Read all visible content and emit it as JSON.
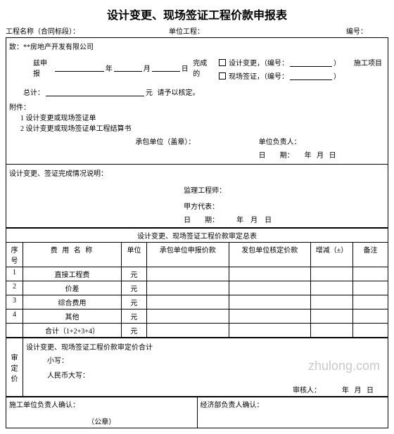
{
  "title": "设计变更、现场签证工程价款申报表",
  "header": {
    "project_name_label": "工程名称（合同标段）：",
    "unit_project_label": "单位工程：",
    "serial_label": "编号："
  },
  "addressee": "致：**房地产开发有限公司",
  "apply": {
    "prefix": "兹申报",
    "year": "年",
    "month": "月",
    "day": "日",
    "done": "完成的",
    "cb_design": "设计变更，（编号：",
    "cb_site": "现场签证，（编号：",
    "cb_close": "）",
    "proj_item": "施工项目"
  },
  "total": {
    "label": "总计：",
    "unit": "元",
    "suffix": "请予以核定。"
  },
  "attach": {
    "label": "附件：",
    "item1": "1 设计变更或现场签证单",
    "item2": "2 设计变更或现场签证单工程结算书"
  },
  "sign1": {
    "contractor": "承包单位（盖章）：",
    "leader": "单位负责人：",
    "date_label": "日　　期：",
    "y": "年",
    "m": "月",
    "d": "日"
  },
  "status_label": "设计变更、签证完成情况说明：",
  "sign2": {
    "engineer": "监理工程师：",
    "owner": "甲方代表：",
    "date_label": "日　　期：",
    "y": "年",
    "m": "月",
    "d": "日"
  },
  "subtable_title": "设计变更、现场签证工程价款审定总表",
  "columns": {
    "seq": "序号",
    "name": "费 用 名 称",
    "unit": "单位",
    "apply_price": "承包单位申报价款",
    "approve_price": "发包单位核定价款",
    "diff": "增减（±）",
    "remark": "备注"
  },
  "rows": [
    {
      "seq": "1",
      "name": "直接工程费",
      "unit": "元"
    },
    {
      "seq": "2",
      "name": "价差",
      "unit": "元"
    },
    {
      "seq": "3",
      "name": "综合费用",
      "unit": "元"
    },
    {
      "seq": "4",
      "name": "其他",
      "unit": "元"
    },
    {
      "seq": "",
      "name": "合计（1+2+3+4）",
      "unit": "元"
    }
  ],
  "审定价": {
    "side": "审定价",
    "line1": "设计变更、现场签证工程价款审定价合计",
    "lower": "小写：",
    "upper": "人民币大写：",
    "reviewer": "审核人：",
    "y": "年",
    "m": "月",
    "d": "日"
  },
  "confirm": {
    "left": "施工单位负责人确认：",
    "stamp": "（公章）",
    "right": "经济部负责人确认："
  },
  "watermark": "zhulong.com"
}
